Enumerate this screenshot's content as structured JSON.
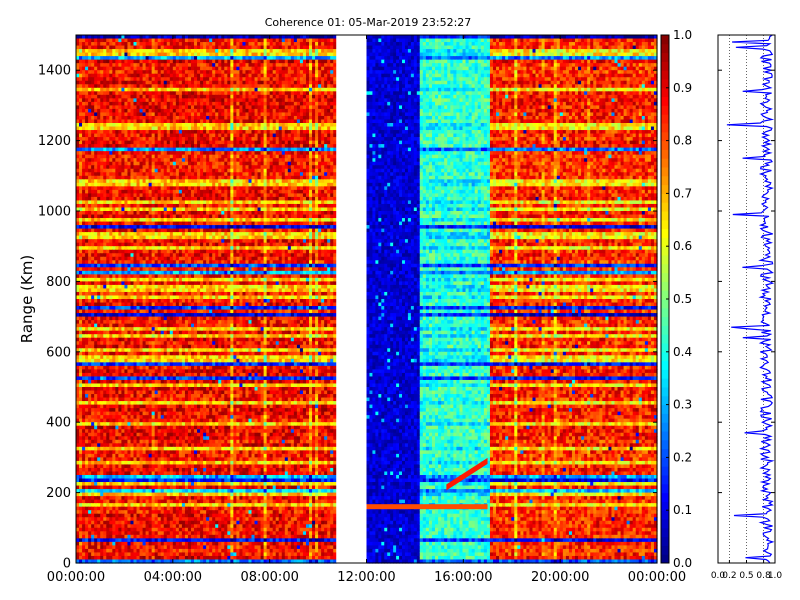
{
  "chart_data": [
    {
      "type": "heatmap",
      "title": "Coherence 01: 05-Mar-2019 23:52:27",
      "xlabel": "",
      "ylabel": "Range (Km)",
      "x_tick_labels": [
        "00:00:00",
        "04:00:00",
        "08:00:00",
        "12:00:00",
        "16:00:00",
        "20:00:00",
        "00:00:00"
      ],
      "x_ticks_hours": [
        0,
        4,
        8,
        12,
        16,
        20,
        24
      ],
      "xlim_hours": [
        0,
        24
      ],
      "y_ticks": [
        0,
        200,
        400,
        600,
        800,
        1000,
        1200,
        1400
      ],
      "ylim": [
        0,
        1500
      ],
      "colormap": "jet",
      "clim": [
        0,
        1
      ],
      "colorbar_ticks": [
        "0.0",
        "0.1",
        "0.2",
        "0.3",
        "0.4",
        "0.5",
        "0.6",
        "0.7",
        "0.8",
        "0.9",
        "1.0"
      ],
      "gap_hours": [
        10.75,
        12
      ],
      "segments": [
        {
          "hours": [
            0,
            10.75
          ],
          "typical_coherence": 0.85
        },
        {
          "hours": [
            12,
            14.2
          ],
          "typical_coherence": 0.07
        },
        {
          "hours": [
            14.2,
            17.1
          ],
          "typical_coherence": 0.42
        },
        {
          "hours": [
            17.1,
            24
          ],
          "typical_coherence": 0.82
        }
      ],
      "features": [
        {
          "type": "horizontal_band",
          "range_km": 160,
          "hours": [
            12,
            17
          ],
          "coherence": 0.8
        },
        {
          "type": "diagonal_band",
          "from": {
            "hours": 15.3,
            "range_km": 215
          },
          "to": {
            "hours": 17.0,
            "range_km": 290
          },
          "coherence": 0.85
        }
      ]
    },
    {
      "type": "line",
      "title": "",
      "xlabel": "",
      "ylabel": "",
      "x_tick_labels": [
        "0.0",
        "0.2",
        "0.5",
        "0.8",
        "1.0"
      ],
      "xlim": [
        0,
        1
      ],
      "ylim": [
        0,
        1500
      ],
      "gridlines_x": [
        0.2,
        0.5,
        0.8
      ],
      "series_color": "#0000ff",
      "typical_value": 0.85
    }
  ]
}
